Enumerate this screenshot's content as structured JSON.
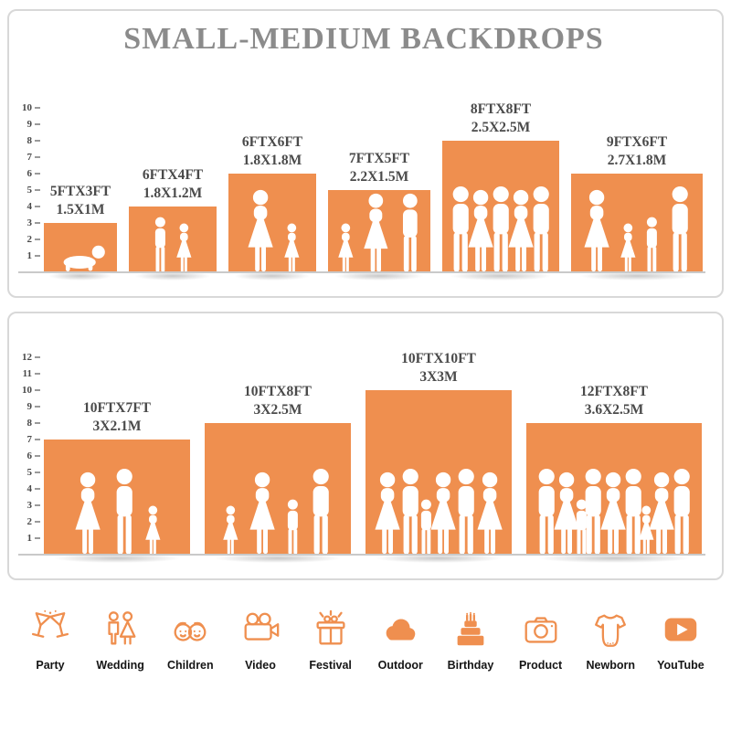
{
  "title": "SMALL-MEDIUM BACKDROPS",
  "accent": "#EF8F4F",
  "chart_data": [
    {
      "type": "bar",
      "title": "SMALL-MEDIUM BACKDROPS",
      "ylim": [
        0,
        10
      ],
      "yticks": [
        1,
        2,
        3,
        4,
        5,
        6,
        7,
        8,
        9,
        10
      ],
      "categories": [
        "5FTX3FT",
        "6FTX4FT",
        "6FTX6FT",
        "7FTX5FT",
        "8FTX8FT",
        "9FTX6FT"
      ],
      "values": [
        3,
        4,
        6,
        5,
        8,
        6
      ],
      "widths_ft": [
        5,
        6,
        6,
        7,
        8,
        9
      ],
      "metric_labels": [
        "1.5X1M",
        "1.8X1.2M",
        "1.8X1.8M",
        "2.2X1.5M",
        "2.5X2.5M",
        "2.7X1.8M"
      ],
      "figures": [
        [
          "baby"
        ],
        [
          "boy",
          "girl"
        ],
        [
          "woman",
          "girl"
        ],
        [
          "girl",
          "woman",
          "man"
        ],
        [
          "man",
          "woman",
          "man",
          "woman",
          "man"
        ],
        [
          "woman",
          "girl",
          "boy",
          "man"
        ]
      ]
    },
    {
      "type": "bar",
      "title": "",
      "ylim": [
        0,
        12
      ],
      "yticks": [
        1,
        2,
        3,
        4,
        5,
        6,
        7,
        8,
        9,
        10,
        11,
        12
      ],
      "categories": [
        "10FTX7FT",
        "10FTX8FT",
        "10FTX10FT",
        "12FTX8FT"
      ],
      "values": [
        7,
        8,
        10,
        8
      ],
      "widths_ft": [
        10,
        10,
        10,
        12
      ],
      "metric_labels": [
        "3X2.1M",
        "3X2.5M",
        "3X3M",
        "3.6X2.5M"
      ],
      "figures": [
        [
          "woman",
          "man",
          "girl"
        ],
        [
          "girl",
          "woman",
          "boy",
          "man"
        ],
        [
          "woman",
          "man",
          "boy",
          "woman",
          "man",
          "woman"
        ],
        [
          "man",
          "woman",
          "boy",
          "man",
          "woman",
          "man",
          "girl",
          "woman",
          "man"
        ]
      ]
    }
  ],
  "categories_row": [
    {
      "label": "Party",
      "icon": "party-icon"
    },
    {
      "label": "Wedding",
      "icon": "wedding-icon"
    },
    {
      "label": "Children",
      "icon": "children-icon"
    },
    {
      "label": "Video",
      "icon": "video-icon"
    },
    {
      "label": "Festival",
      "icon": "festival-icon"
    },
    {
      "label": "Outdoor",
      "icon": "outdoor-icon"
    },
    {
      "label": "Birthday",
      "icon": "birthday-icon"
    },
    {
      "label": "Product",
      "icon": "product-icon"
    },
    {
      "label": "Newborn",
      "icon": "newborn-icon"
    },
    {
      "label": "YouTube",
      "icon": "youtube-icon"
    }
  ]
}
